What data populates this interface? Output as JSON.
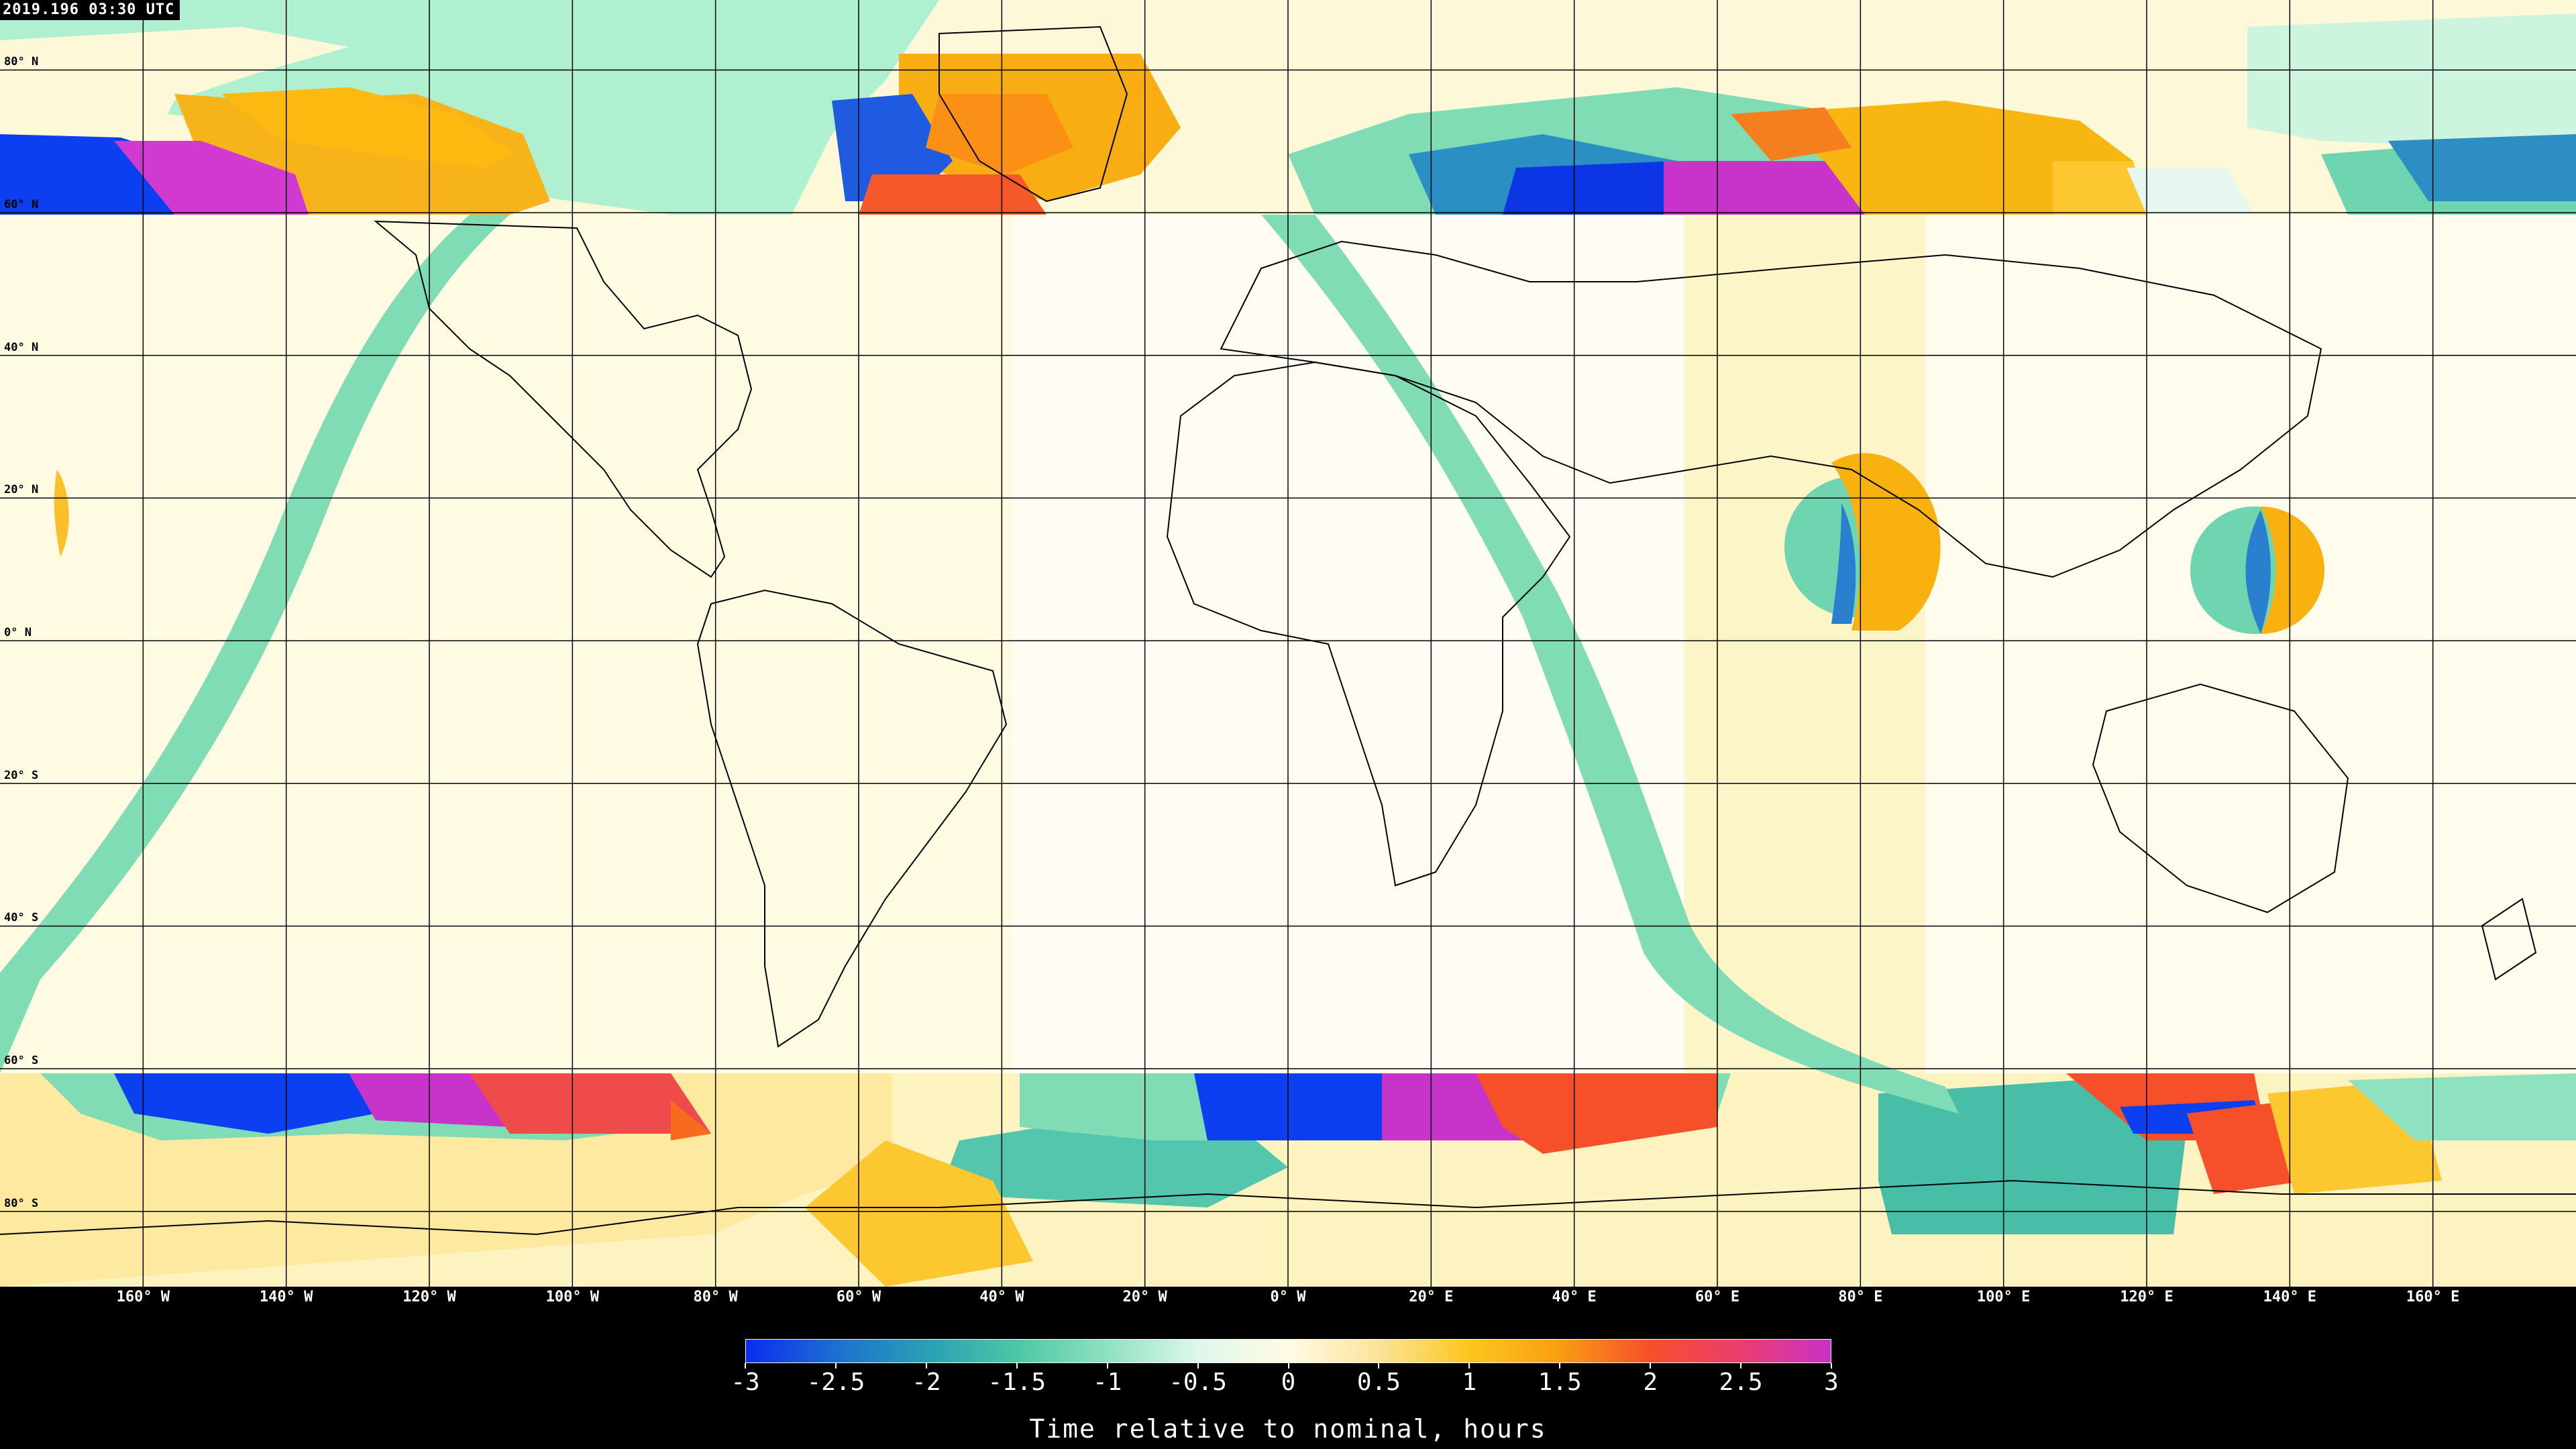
{
  "timestamp": "2019.196 03:30 UTC",
  "map": {
    "projection": "equirectangular",
    "lat_labels": [
      "80° N",
      "60° N",
      "40° N",
      "20° N",
      "0° N",
      "20° S",
      "40° S",
      "60° S",
      "80° S"
    ],
    "lon_labels": [
      "160° W",
      "140° W",
      "120° W",
      "100° W",
      "80° W",
      "60° W",
      "40° W",
      "20° W",
      "0° W",
      "20° E",
      "40° E",
      "60° E",
      "80° E",
      "100° E",
      "120° E",
      "140° E",
      "160° E"
    ],
    "grid": true
  },
  "colorbar": {
    "title": "Time relative to nominal, hours",
    "min": -3,
    "max": 3,
    "ticks": [
      "-3",
      "-2.5",
      "-2",
      "-1.5",
      "-1",
      "-0.5",
      "0",
      "0.5",
      "1",
      "1.5",
      "2",
      "2.5",
      "3"
    ],
    "colors": [
      "#0b2cf0",
      "#1e6fd0",
      "#29a0b4",
      "#4cc7a6",
      "#8fe2bf",
      "#dff7ec",
      "#fffbe3",
      "#fbe49a",
      "#fdc61f",
      "#f99d12",
      "#f5502a",
      "#ea3d6e",
      "#c932c8"
    ]
  }
}
